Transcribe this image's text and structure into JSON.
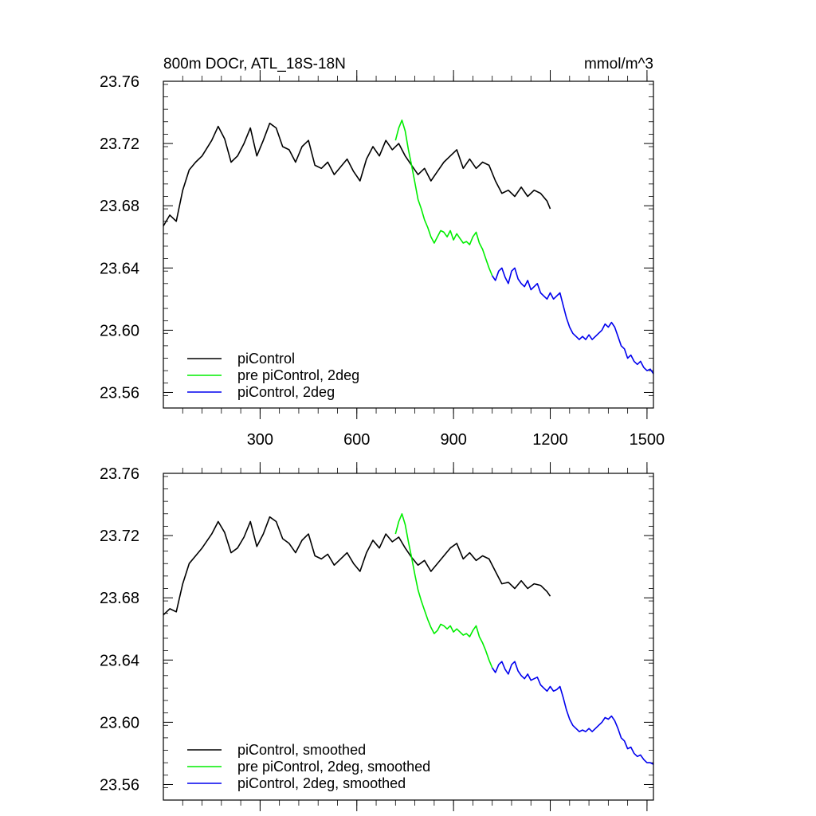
{
  "chart_data": [
    {
      "type": "line",
      "title": "800m DOCr, ATL_18S-18N",
      "units": "mmol/m^3",
      "xlabel": "",
      "ylabel": "",
      "xlim": [
        0,
        1520
      ],
      "ylim": [
        23.55,
        23.76
      ],
      "xticks": [
        300,
        600,
        900,
        1200,
        1500
      ],
      "xtick_labels": [
        "300",
        "600",
        "900",
        "1200",
        "1500"
      ],
      "yticks": [
        23.56,
        23.6,
        23.64,
        23.68,
        23.72,
        23.76
      ],
      "ytick_labels": [
        "23.56",
        "23.60",
        "23.64",
        "23.68",
        "23.72",
        "23.76"
      ],
      "legend_position": "bottom-left",
      "series": [
        {
          "name": "piControl",
          "color": "#000000",
          "x": [
            0,
            20,
            40,
            60,
            80,
            100,
            120,
            150,
            170,
            190,
            210,
            230,
            250,
            270,
            290,
            310,
            330,
            350,
            370,
            390,
            410,
            430,
            450,
            470,
            490,
            510,
            530,
            550,
            570,
            590,
            610,
            630,
            650,
            670,
            690,
            710,
            730,
            750,
            770,
            790,
            810,
            830,
            850,
            870,
            890,
            910,
            930,
            950,
            970,
            990,
            1010,
            1030,
            1050,
            1070,
            1090,
            1110,
            1130,
            1150,
            1170,
            1190,
            1200
          ],
          "values": [
            23.667,
            23.674,
            23.67,
            23.69,
            23.703,
            23.708,
            23.712,
            23.722,
            23.731,
            23.723,
            23.708,
            23.712,
            23.72,
            23.73,
            23.712,
            23.722,
            23.733,
            23.73,
            23.718,
            23.716,
            23.708,
            23.718,
            23.722,
            23.706,
            23.704,
            23.708,
            23.7,
            23.705,
            23.71,
            23.702,
            23.696,
            23.71,
            23.718,
            23.712,
            23.722,
            23.716,
            23.72,
            23.712,
            23.706,
            23.7,
            23.704,
            23.696,
            23.702,
            23.708,
            23.712,
            23.716,
            23.704,
            23.71,
            23.704,
            23.708,
            23.706,
            23.696,
            23.688,
            23.69,
            23.686,
            23.692,
            23.686,
            23.69,
            23.688,
            23.683,
            23.678
          ]
        },
        {
          "name": "pre piControl, 2deg",
          "color": "#00ee00",
          "x": [
            720,
            730,
            740,
            750,
            760,
            770,
            780,
            790,
            800,
            810,
            820,
            830,
            840,
            850,
            860,
            870,
            880,
            890,
            900,
            910,
            920,
            930,
            940,
            950,
            960,
            970,
            980,
            990,
            1000,
            1010,
            1020
          ],
          "values": [
            23.722,
            23.73,
            23.735,
            23.728,
            23.716,
            23.706,
            23.695,
            23.684,
            23.678,
            23.671,
            23.666,
            23.66,
            23.656,
            23.66,
            23.664,
            23.663,
            23.66,
            23.664,
            23.658,
            23.662,
            23.659,
            23.656,
            23.657,
            23.655,
            23.66,
            23.663,
            23.656,
            23.652,
            23.646,
            23.64,
            23.635
          ]
        },
        {
          "name": "piControl, 2deg",
          "color": "#0000ee",
          "x": [
            1020,
            1030,
            1040,
            1050,
            1060,
            1070,
            1080,
            1090,
            1100,
            1110,
            1120,
            1130,
            1140,
            1150,
            1160,
            1170,
            1180,
            1190,
            1200,
            1210,
            1220,
            1230,
            1240,
            1250,
            1260,
            1270,
            1280,
            1290,
            1300,
            1310,
            1320,
            1330,
            1340,
            1350,
            1360,
            1370,
            1380,
            1390,
            1400,
            1410,
            1420,
            1430,
            1440,
            1450,
            1460,
            1470,
            1480,
            1490,
            1500,
            1510,
            1520
          ],
          "values": [
            23.635,
            23.632,
            23.638,
            23.64,
            23.634,
            23.63,
            23.638,
            23.64,
            23.633,
            23.63,
            23.628,
            23.632,
            23.626,
            23.628,
            23.63,
            23.624,
            23.622,
            23.62,
            23.624,
            23.62,
            23.622,
            23.624,
            23.616,
            23.608,
            23.602,
            23.598,
            23.596,
            23.594,
            23.596,
            23.594,
            23.597,
            23.594,
            23.596,
            23.598,
            23.6,
            23.604,
            23.602,
            23.605,
            23.602,
            23.596,
            23.59,
            23.588,
            23.582,
            23.584,
            23.58,
            23.578,
            23.58,
            23.576,
            23.574,
            23.575,
            23.572
          ]
        }
      ]
    },
    {
      "type": "line",
      "title": "",
      "xlabel": "",
      "ylabel": "",
      "xlim": [
        0,
        1520
      ],
      "ylim": [
        23.55,
        23.76
      ],
      "xticks": [
        300,
        600,
        900,
        1200,
        1500
      ],
      "yticks": [
        23.56,
        23.6,
        23.64,
        23.68,
        23.72,
        23.76
      ],
      "ytick_labels": [
        "23.56",
        "23.60",
        "23.64",
        "23.68",
        "23.72",
        "23.76"
      ],
      "legend_position": "bottom-left",
      "series": [
        {
          "name": "piControl, smoothed",
          "color": "#000000",
          "x": [
            0,
            20,
            40,
            60,
            80,
            100,
            120,
            150,
            170,
            190,
            210,
            230,
            250,
            270,
            290,
            310,
            330,
            350,
            370,
            390,
            410,
            430,
            450,
            470,
            490,
            510,
            530,
            550,
            570,
            590,
            610,
            630,
            650,
            670,
            690,
            710,
            730,
            750,
            770,
            790,
            810,
            830,
            850,
            870,
            890,
            910,
            930,
            950,
            970,
            990,
            1010,
            1030,
            1050,
            1070,
            1090,
            1110,
            1130,
            1150,
            1170,
            1190,
            1200
          ],
          "values": [
            23.669,
            23.673,
            23.671,
            23.689,
            23.702,
            23.707,
            23.712,
            23.721,
            23.729,
            23.722,
            23.709,
            23.712,
            23.719,
            23.729,
            23.713,
            23.721,
            23.732,
            23.729,
            23.718,
            23.715,
            23.709,
            23.717,
            23.721,
            23.707,
            23.705,
            23.708,
            23.701,
            23.705,
            23.709,
            23.702,
            23.697,
            23.709,
            23.717,
            23.712,
            23.721,
            23.716,
            23.719,
            23.712,
            23.706,
            23.701,
            23.704,
            23.697,
            23.702,
            23.707,
            23.712,
            23.715,
            23.705,
            23.709,
            23.704,
            23.707,
            23.705,
            23.697,
            23.689,
            23.69,
            23.686,
            23.691,
            23.686,
            23.689,
            23.688,
            23.684,
            23.681
          ]
        },
        {
          "name": "pre piControl, 2deg, smoothed",
          "color": "#00ee00",
          "x": [
            720,
            730,
            740,
            750,
            760,
            770,
            780,
            790,
            800,
            810,
            820,
            830,
            840,
            850,
            860,
            870,
            880,
            890,
            900,
            910,
            920,
            930,
            940,
            950,
            960,
            970,
            980,
            990,
            1000,
            1010,
            1020
          ],
          "values": [
            23.721,
            23.729,
            23.734,
            23.727,
            23.716,
            23.706,
            23.695,
            23.685,
            23.678,
            23.672,
            23.666,
            23.661,
            23.657,
            23.659,
            23.663,
            23.662,
            23.66,
            23.662,
            23.658,
            23.66,
            23.658,
            23.656,
            23.657,
            23.655,
            23.659,
            23.662,
            23.655,
            23.651,
            23.646,
            23.64,
            23.635
          ]
        },
        {
          "name": "piControl, 2deg, smoothed",
          "color": "#0000ee",
          "x": [
            1020,
            1030,
            1040,
            1050,
            1060,
            1070,
            1080,
            1090,
            1100,
            1110,
            1120,
            1130,
            1140,
            1150,
            1160,
            1170,
            1180,
            1190,
            1200,
            1210,
            1220,
            1230,
            1240,
            1250,
            1260,
            1270,
            1280,
            1290,
            1300,
            1310,
            1320,
            1330,
            1340,
            1350,
            1360,
            1370,
            1380,
            1390,
            1400,
            1410,
            1420,
            1430,
            1440,
            1450,
            1460,
            1470,
            1480,
            1490,
            1500,
            1510,
            1520
          ],
          "values": [
            23.635,
            23.632,
            23.637,
            23.639,
            23.634,
            23.631,
            23.637,
            23.639,
            23.633,
            23.63,
            23.628,
            23.631,
            23.627,
            23.628,
            23.629,
            23.624,
            23.622,
            23.62,
            23.623,
            23.62,
            23.621,
            23.623,
            23.616,
            23.608,
            23.602,
            23.598,
            23.596,
            23.594,
            23.595,
            23.594,
            23.596,
            23.594,
            23.596,
            23.598,
            23.6,
            23.603,
            23.602,
            23.604,
            23.601,
            23.596,
            23.59,
            23.588,
            23.583,
            23.584,
            23.58,
            23.578,
            23.579,
            23.576,
            23.574,
            23.574,
            23.573
          ]
        }
      ]
    }
  ]
}
